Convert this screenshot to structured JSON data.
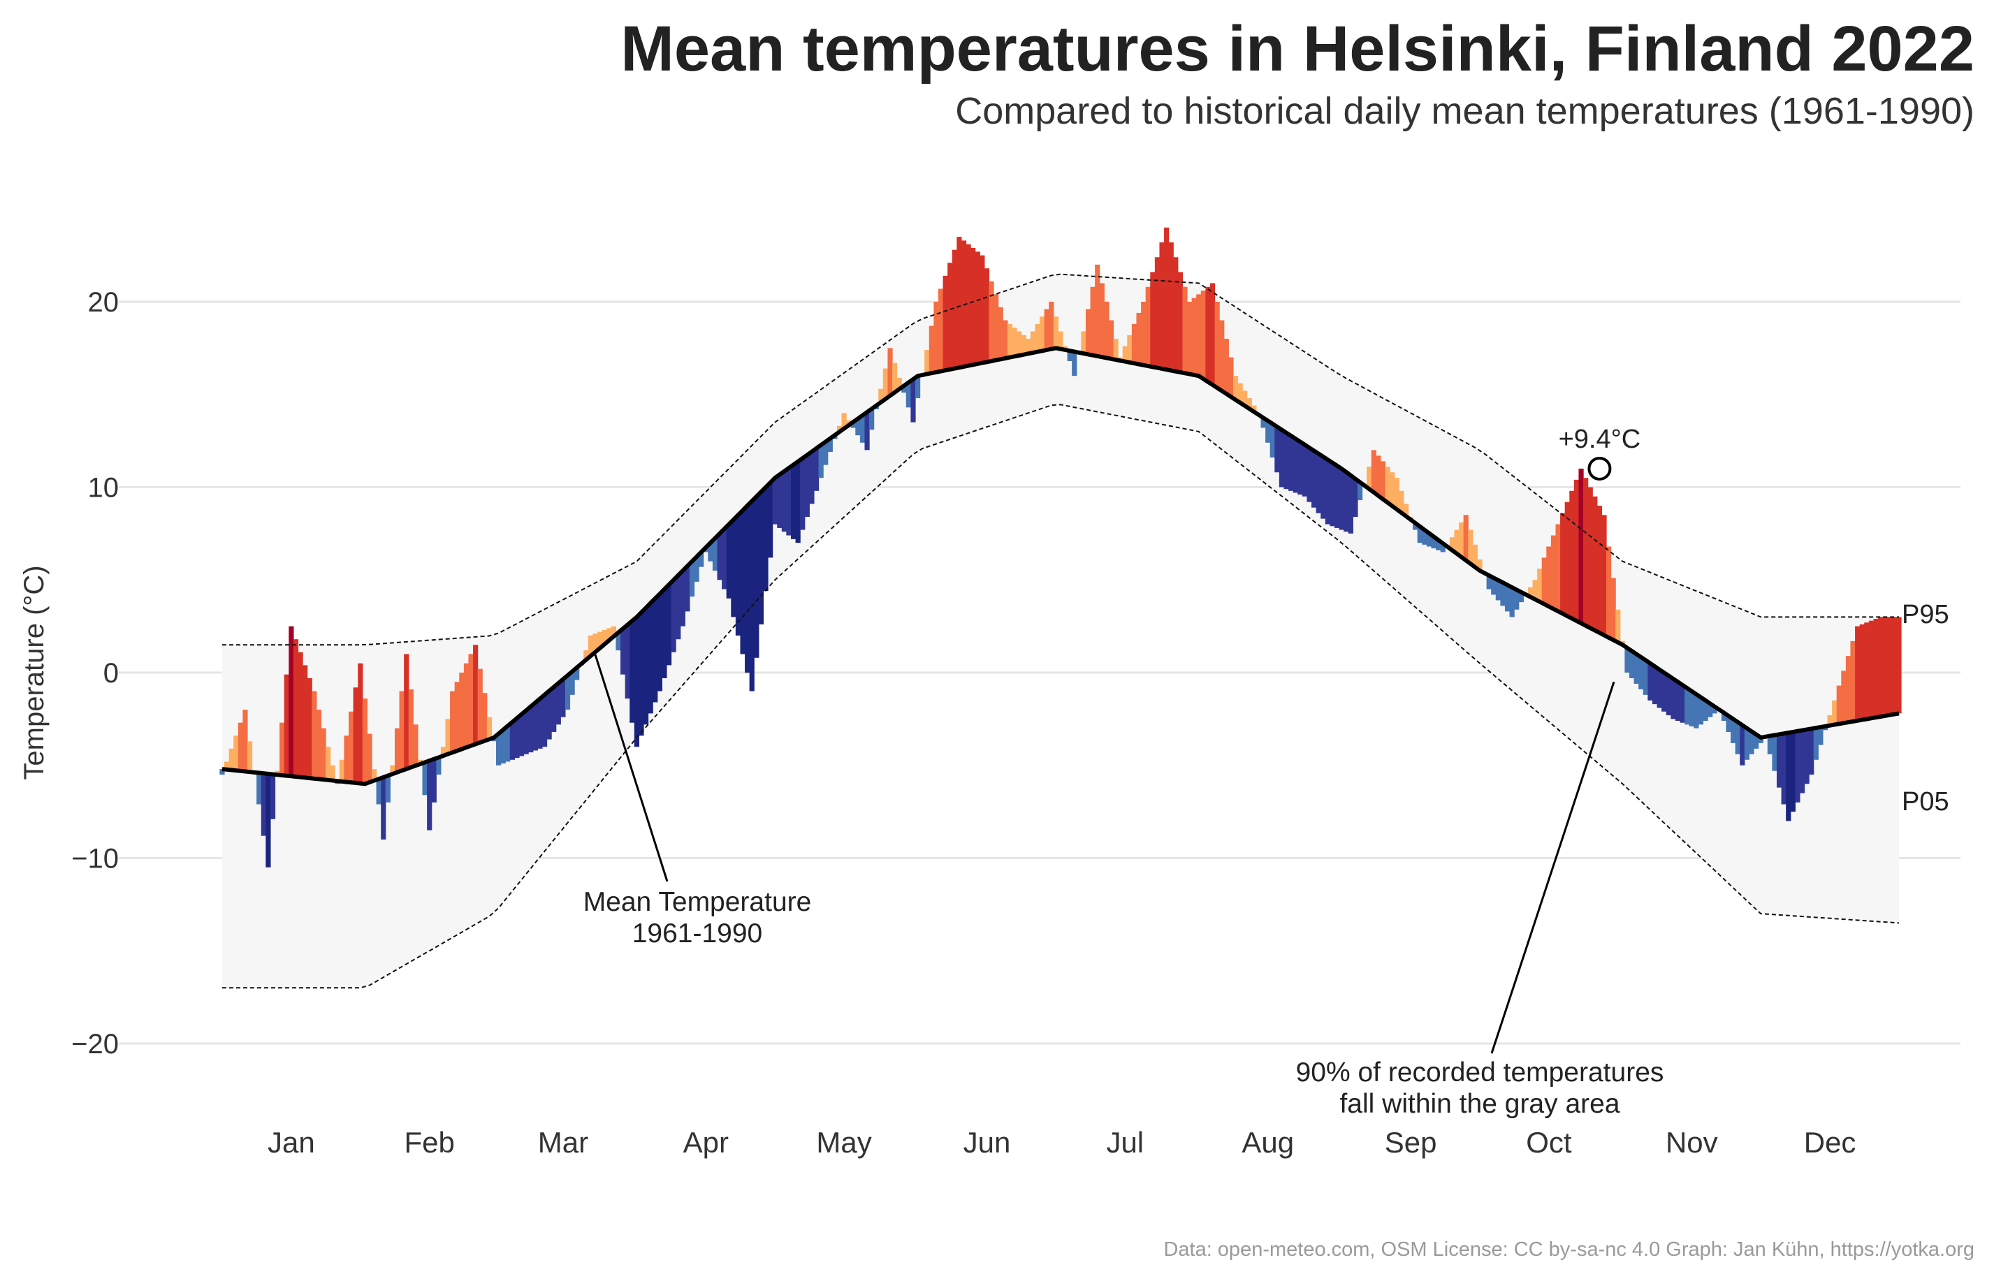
{
  "chart_data": {
    "type": "area",
    "title": "Mean temperatures in Helsinki, Finland 2022",
    "subtitle": "Compared to historical daily mean temperatures (1961-1990)",
    "xlabel": "",
    "ylabel": "Temperature (°C)",
    "ylim": [
      -23,
      26
    ],
    "yticks": [
      20,
      10,
      0,
      -10,
      -20
    ],
    "ytick_labels": [
      "20",
      "10",
      "0",
      "−10",
      "−20"
    ],
    "x_months": [
      "Jan",
      "Feb",
      "Mar",
      "Apr",
      "May",
      "Jun",
      "Jul",
      "Aug",
      "Sep",
      "Oct",
      "Nov",
      "Dec"
    ],
    "grid": true,
    "colors": {
      "mean_line": "#000000",
      "band": "#f6f6f6",
      "warm_scale": [
        "#fdae61",
        "#f46d43",
        "#d73027",
        "#a50026"
      ],
      "cold_scale": [
        "#4575b4",
        "#313695",
        "#1a237e"
      ]
    },
    "series": [
      {
        "name": "Mean Temperature 1961-1990",
        "x": [
          1,
          32,
          60,
          91,
          121,
          152,
          182,
          213,
          244,
          274,
          305,
          335,
          365
        ],
        "values": [
          -5.2,
          -6.0,
          -3.5,
          3.0,
          10.5,
          16.0,
          17.5,
          16.0,
          11.0,
          5.5,
          1.5,
          -3.5,
          -2.2
        ]
      },
      {
        "name": "P95",
        "x": [
          1,
          32,
          60,
          91,
          121,
          152,
          182,
          213,
          244,
          274,
          305,
          335,
          365
        ],
        "values": [
          1.5,
          1.5,
          2.0,
          6.0,
          13.5,
          19.0,
          21.5,
          21.0,
          16.0,
          12.0,
          6.0,
          3.0,
          3.0
        ]
      },
      {
        "name": "P05",
        "x": [
          1,
          32,
          60,
          91,
          121,
          152,
          182,
          213,
          244,
          274,
          305,
          335,
          365
        ],
        "values": [
          -17.0,
          -17.0,
          -13.0,
          -3.5,
          5.0,
          12.0,
          14.5,
          13.0,
          7.0,
          0.5,
          -6.0,
          -13.0,
          -13.5
        ]
      },
      {
        "name": "2022",
        "x": [
          1,
          6,
          11,
          16,
          21,
          26,
          31,
          36,
          41,
          46,
          51,
          56,
          61,
          66,
          71,
          76,
          81,
          86,
          91,
          96,
          101,
          106,
          111,
          116,
          121,
          126,
          131,
          136,
          141,
          146,
          151,
          156,
          161,
          166,
          171,
          176,
          181,
          186,
          191,
          196,
          201,
          206,
          211,
          216,
          221,
          226,
          231,
          236,
          241,
          246,
          251,
          256,
          261,
          266,
          271,
          276,
          281,
          286,
          291,
          296,
          301,
          306,
          311,
          316,
          321,
          326,
          331,
          336,
          341,
          346,
          351,
          356,
          361,
          365
        ],
        "values": [
          -5.5,
          -2.0,
          -10.5,
          2.5,
          -1.0,
          -6.0,
          0.5,
          -9.0,
          1.0,
          -8.5,
          -1.0,
          1.5,
          -5.0,
          -4.5,
          -4.0,
          -2.0,
          2.0,
          2.5,
          -4.0,
          -1.0,
          2.5,
          6.5,
          4.0,
          -1.0,
          8.0,
          7.0,
          10.5,
          14.0,
          12.0,
          17.5,
          13.5,
          20.0,
          23.5,
          22.5,
          19.0,
          18.0,
          20.0,
          16.0,
          22.0,
          17.0,
          20.0,
          24.0,
          20.0,
          21.0,
          16.0,
          14.0,
          10.0,
          9.5,
          8.0,
          7.5,
          12.0,
          10.5,
          7.0,
          6.5,
          8.5,
          4.5,
          3.0,
          5.0,
          8.0,
          11.0,
          8.5,
          0.0,
          -1.5,
          -2.5,
          -3.0,
          -2.0,
          -5.0,
          -3.5,
          -8.0,
          -5.5,
          -1.5,
          2.5,
          3.0,
          3.0
        ]
      }
    ],
    "annotations": {
      "mean_label": "Mean Temperature\n1961-1990",
      "band_label": "90% of recorded temperatures\nfall within the gray area",
      "highlight_label": "+9.4°C",
      "highlight_point": {
        "x": 300,
        "y": 11.0
      },
      "p95_label": "P95",
      "p05_label": "P05"
    }
  },
  "footer": "Data: open-meteo.com, OSM  License: CC by-sa-nc 4.0  Graph: Jan Kühn, https://yotka.org"
}
